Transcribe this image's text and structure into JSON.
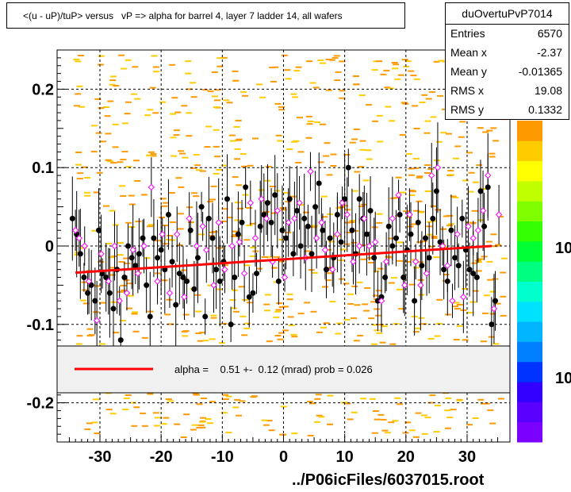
{
  "title": "<(u - uP)/tuP> versus   vP => alpha for barrel 4, layer 7 ladder 14, all wafers",
  "stats": {
    "name": "duOvertuPvP7014",
    "rows": [
      {
        "label": "Entries",
        "value": "6570"
      },
      {
        "label": "Mean x",
        "value": "-2.37"
      },
      {
        "label": "Mean y",
        "value": "-0.01365"
      },
      {
        "label": "RMS x",
        "value": "19.08"
      },
      {
        "label": "RMS y",
        "value": "0.1332"
      }
    ]
  },
  "legend": {
    "fit_text": "alpha =    0.51 +-  0.12 (mrad) prob = 0.026",
    "fit_color": "#ff0000"
  },
  "footer": "../P06icFiles/6037015.root",
  "colorbar": {
    "labels": [
      "10",
      "10"
    ],
    "colors": [
      "#7b00ff",
      "#5a00ff",
      "#3200ff",
      "#0033ff",
      "#0080ff",
      "#00b4ff",
      "#00e0ff",
      "#00ffcc",
      "#00ff80",
      "#00ff33",
      "#33ff00",
      "#80ff00",
      "#c0ff00",
      "#ffff00",
      "#ffcc00",
      "#ff9900"
    ]
  },
  "chart_data": {
    "type": "scatter",
    "xlim": [
      -37,
      37
    ],
    "ylim": [
      -0.25,
      0.25
    ],
    "xticks": [
      -30,
      -20,
      -10,
      0,
      10,
      20,
      30
    ],
    "yticks": [
      -0.2,
      -0.1,
      0,
      0.1,
      0.2
    ],
    "xtick_labels": [
      "-30",
      "-20",
      "-10",
      "0",
      "10",
      "20",
      "30"
    ],
    "ytick_labels": [
      "-0.2",
      "-0.1",
      "0",
      "0.1",
      "0.2"
    ],
    "grid": true,
    "fit_line": {
      "x": [
        -34,
        34
      ],
      "y": [
        -0.034,
        0.0
      ]
    },
    "black_points": [
      [
        -34.5,
        0.035
      ],
      [
        -33.8,
        0.015
      ],
      [
        -33.2,
        -0.01
      ],
      [
        -32.6,
        -0.04
      ],
      [
        -32,
        -0.06
      ],
      [
        -31.4,
        -0.05
      ],
      [
        -30.8,
        -0.07
      ],
      [
        -30.2,
        0.02
      ],
      [
        -29.6,
        -0.035
      ],
      [
        -29,
        -0.04
      ],
      [
        -28.4,
        -0.06
      ],
      [
        -27.8,
        -0.08
      ],
      [
        -27.2,
        -0.03
      ],
      [
        -26.6,
        -0.12
      ],
      [
        -26,
        -0.04
      ],
      [
        -25.4,
        0.0
      ],
      [
        -24.8,
        -0.015
      ],
      [
        -24.2,
        -0.025
      ],
      [
        -23.6,
        -0.01
      ],
      [
        -23,
        0.01
      ],
      [
        -22.4,
        -0.05
      ],
      [
        -21.8,
        -0.09
      ],
      [
        -21.2,
        0.01
      ],
      [
        -20.6,
        -0.015
      ],
      [
        -20,
        -0.005
      ],
      [
        -19.4,
        -0.03
      ],
      [
        -18.8,
        0.04
      ],
      [
        -18.2,
        -0.02
      ],
      [
        -17.6,
        -0.075
      ],
      [
        -17,
        -0.035
      ],
      [
        -16.4,
        -0.04
      ],
      [
        -15.8,
        -0.045
      ],
      [
        -15.2,
        0.02
      ],
      [
        -14.6,
        -0.055
      ],
      [
        -14,
        -0.015
      ],
      [
        -13.4,
        0.05
      ],
      [
        -12.8,
        -0.09
      ],
      [
        -12.2,
        0.035
      ],
      [
        -11.6,
        0.01
      ],
      [
        -11,
        -0.03
      ],
      [
        -10.4,
        -0.045
      ],
      [
        -9.8,
        -0.02
      ],
      [
        -9.2,
        0.06
      ],
      [
        -8.6,
        -0.1
      ],
      [
        -8,
        -0.04
      ],
      [
        -7.4,
        0.015
      ],
      [
        -6.8,
        0.03
      ],
      [
        -6.2,
        0.075
      ],
      [
        -5.6,
        -0.065
      ],
      [
        -5,
        -0.06
      ],
      [
        -4.4,
        -0.035
      ],
      [
        -3.8,
        0.025
      ],
      [
        -3.2,
        0.04
      ],
      [
        -2.6,
        0.055
      ],
      [
        -2,
        0.03
      ],
      [
        -1.4,
        0.065
      ],
      [
        -0.8,
        -0.045
      ],
      [
        -0.2,
        0.02
      ],
      [
        0.4,
        0.01
      ],
      [
        1,
        0.06
      ],
      [
        1.6,
        -0.01
      ],
      [
        2.2,
        0.045
      ],
      [
        2.8,
        0.0
      ],
      [
        3.4,
        0.035
      ],
      [
        4,
        0.025
      ],
      [
        4.6,
        -0.01
      ],
      [
        5.2,
        0.05
      ],
      [
        5.8,
        0.08
      ],
      [
        6.4,
        0.02
      ],
      [
        7,
        -0.03
      ],
      [
        7.6,
        0.01
      ],
      [
        8.2,
        -0.015
      ],
      [
        8.8,
        0.04
      ],
      [
        9.4,
        0.005
      ],
      [
        10,
        0.06
      ],
      [
        10.6,
        0.1
      ],
      [
        11.2,
        0.02
      ],
      [
        11.8,
        -0.01
      ],
      [
        12.4,
        0.06
      ],
      [
        13,
        0.035
      ],
      [
        13.6,
        0.015
      ],
      [
        14.2,
        0.045
      ],
      [
        14.8,
        -0.015
      ],
      [
        15.4,
        -0.07
      ],
      [
        16,
        -0.065
      ],
      [
        16.6,
        -0.04
      ],
      [
        17.2,
        0.025
      ],
      [
        17.8,
        0.0
      ],
      [
        18.4,
        0.01
      ],
      [
        19,
        0.04
      ],
      [
        19.6,
        -0.04
      ],
      [
        20.2,
        -0.005
      ],
      [
        20.8,
        0.015
      ],
      [
        21.4,
        -0.07
      ],
      [
        22,
        0.03
      ],
      [
        22.6,
        -0.025
      ],
      [
        23.2,
        0.01
      ],
      [
        23.8,
        -0.015
      ],
      [
        24.4,
        0.035
      ],
      [
        25,
        0.07
      ],
      [
        25.6,
        0.005
      ],
      [
        26.2,
        -0.03
      ],
      [
        26.8,
        -0.045
      ],
      [
        27.4,
        0.02
      ],
      [
        28,
        -0.015
      ],
      [
        28.6,
        -0.025
      ],
      [
        29.2,
        0.035
      ],
      [
        29.8,
        -0.005
      ],
      [
        30.4,
        -0.03
      ],
      [
        31,
        -0.035
      ],
      [
        31.6,
        -0.04
      ],
      [
        32.2,
        0.07
      ],
      [
        32.8,
        0.025
      ],
      [
        33.4,
        0.075
      ],
      [
        34,
        -0.1
      ],
      [
        34.6,
        -0.07
      ]
    ],
    "magenta_points": [
      [
        -34,
        0.02
      ],
      [
        -33.4,
        0.01
      ],
      [
        -32.5,
        0.0
      ],
      [
        -31.8,
        -0.045
      ],
      [
        -30.5,
        -0.095
      ],
      [
        -29.8,
        -0.01
      ],
      [
        -28.6,
        -0.045
      ],
      [
        -27.6,
        0.0
      ],
      [
        -26.8,
        -0.07
      ],
      [
        -25.6,
        -0.06
      ],
      [
        -24.6,
        -0.005
      ],
      [
        -23.8,
        -0.035
      ],
      [
        -22.8,
        0.0
      ],
      [
        -21.6,
        0.075
      ],
      [
        -20.6,
        -0.045
      ],
      [
        -19.8,
        0.015
      ],
      [
        -18.6,
        -0.06
      ],
      [
        -17.4,
        0.015
      ],
      [
        -16.2,
        -0.065
      ],
      [
        -15.4,
        0.035
      ],
      [
        -14.2,
        0.0
      ],
      [
        -13.2,
        0.025
      ],
      [
        -12.6,
        -0.005
      ],
      [
        -11.4,
        -0.05
      ],
      [
        -10.6,
        0.03
      ],
      [
        -9.6,
        -0.03
      ],
      [
        -8.4,
        0.0
      ],
      [
        -7.2,
        0.005
      ],
      [
        -6.4,
        -0.035
      ],
      [
        -5.4,
        0.055
      ],
      [
        -4.6,
        0.01
      ],
      [
        -3.6,
        0.06
      ],
      [
        -2.8,
        0.035
      ],
      [
        -1.8,
        -0.02
      ],
      [
        -1,
        0.045
      ],
      [
        0.2,
        -0.04
      ],
      [
        0.8,
        0.03
      ],
      [
        1.8,
        0.035
      ],
      [
        2.6,
        0.055
      ],
      [
        3.6,
        -0.015
      ],
      [
        4.4,
        0.095
      ],
      [
        5.4,
        0.01
      ],
      [
        6.2,
        0.03
      ],
      [
        6.8,
        -0.005
      ],
      [
        8,
        -0.03
      ],
      [
        8.8,
        0.015
      ],
      [
        9.6,
        0.055
      ],
      [
        10.4,
        0.04
      ],
      [
        11.4,
        -0.02
      ],
      [
        12.4,
        0.0
      ],
      [
        13.2,
        0.035
      ],
      [
        14,
        0.0
      ],
      [
        15,
        0.005
      ],
      [
        16,
        -0.07
      ],
      [
        16.8,
        -0.02
      ],
      [
        17.8,
        0.035
      ],
      [
        18.8,
        0.065
      ],
      [
        19.8,
        -0.05
      ],
      [
        20.6,
        0.04
      ],
      [
        21.6,
        -0.02
      ],
      [
        22.4,
        -0.05
      ],
      [
        23.4,
        -0.035
      ],
      [
        24.2,
        0.09
      ],
      [
        25.2,
        0.1
      ],
      [
        26,
        0.0
      ],
      [
        26.8,
        -0.025
      ],
      [
        27.6,
        -0.07
      ],
      [
        28.4,
        0.015
      ],
      [
        29.4,
        -0.065
      ],
      [
        30.2,
        0.025
      ],
      [
        31,
        0.01
      ],
      [
        31.8,
        0.02
      ],
      [
        32.6,
        0.045
      ],
      [
        33.4,
        0.09
      ],
      [
        34.4,
        -0.08
      ],
      [
        35.2,
        0.04
      ]
    ]
  }
}
